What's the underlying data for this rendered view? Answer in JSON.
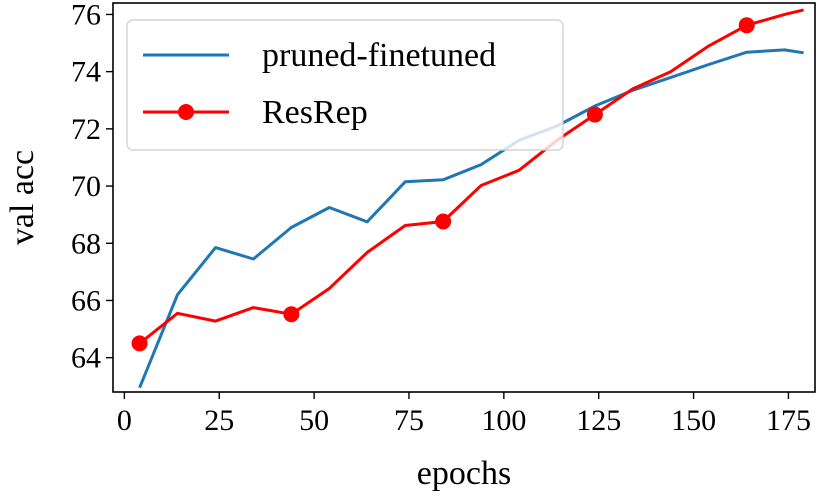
{
  "chart_data": {
    "type": "line",
    "title": "",
    "xlabel": "epochs",
    "ylabel": "val acc",
    "xlim": [
      -3,
      182
    ],
    "ylim": [
      62.8,
      76.4
    ],
    "xticks": [
      0,
      25,
      50,
      75,
      100,
      125,
      150,
      175
    ],
    "yticks": [
      64,
      66,
      68,
      70,
      72,
      74,
      76
    ],
    "grid": false,
    "legend_position": "top-left",
    "series": [
      {
        "name": "pruned-finetuned",
        "color": "#1f77b4",
        "marker": "none",
        "x": [
          4,
          14,
          24,
          34,
          44,
          54,
          64,
          74,
          84,
          94,
          104,
          114,
          124,
          134,
          144,
          154,
          164,
          174,
          179
        ],
        "y": [
          62.95,
          66.2,
          67.85,
          67.45,
          68.55,
          69.25,
          68.75,
          70.15,
          70.22,
          70.75,
          71.6,
          72.1,
          72.8,
          73.35,
          73.8,
          74.25,
          74.68,
          74.76,
          74.66
        ]
      },
      {
        "name": "ResRep",
        "color": "#ff0000",
        "marker": "circle",
        "markevery_x": [
          4,
          44,
          84,
          124,
          164
        ],
        "x": [
          4,
          14,
          24,
          34,
          44,
          54,
          64,
          74,
          84,
          94,
          104,
          114,
          124,
          134,
          144,
          154,
          164,
          174,
          179
        ],
        "y": [
          64.5,
          65.55,
          65.28,
          65.75,
          65.52,
          66.42,
          67.68,
          68.62,
          68.76,
          70.02,
          70.55,
          71.6,
          72.5,
          73.4,
          74.0,
          74.9,
          75.62,
          76.0,
          76.16
        ]
      }
    ]
  }
}
